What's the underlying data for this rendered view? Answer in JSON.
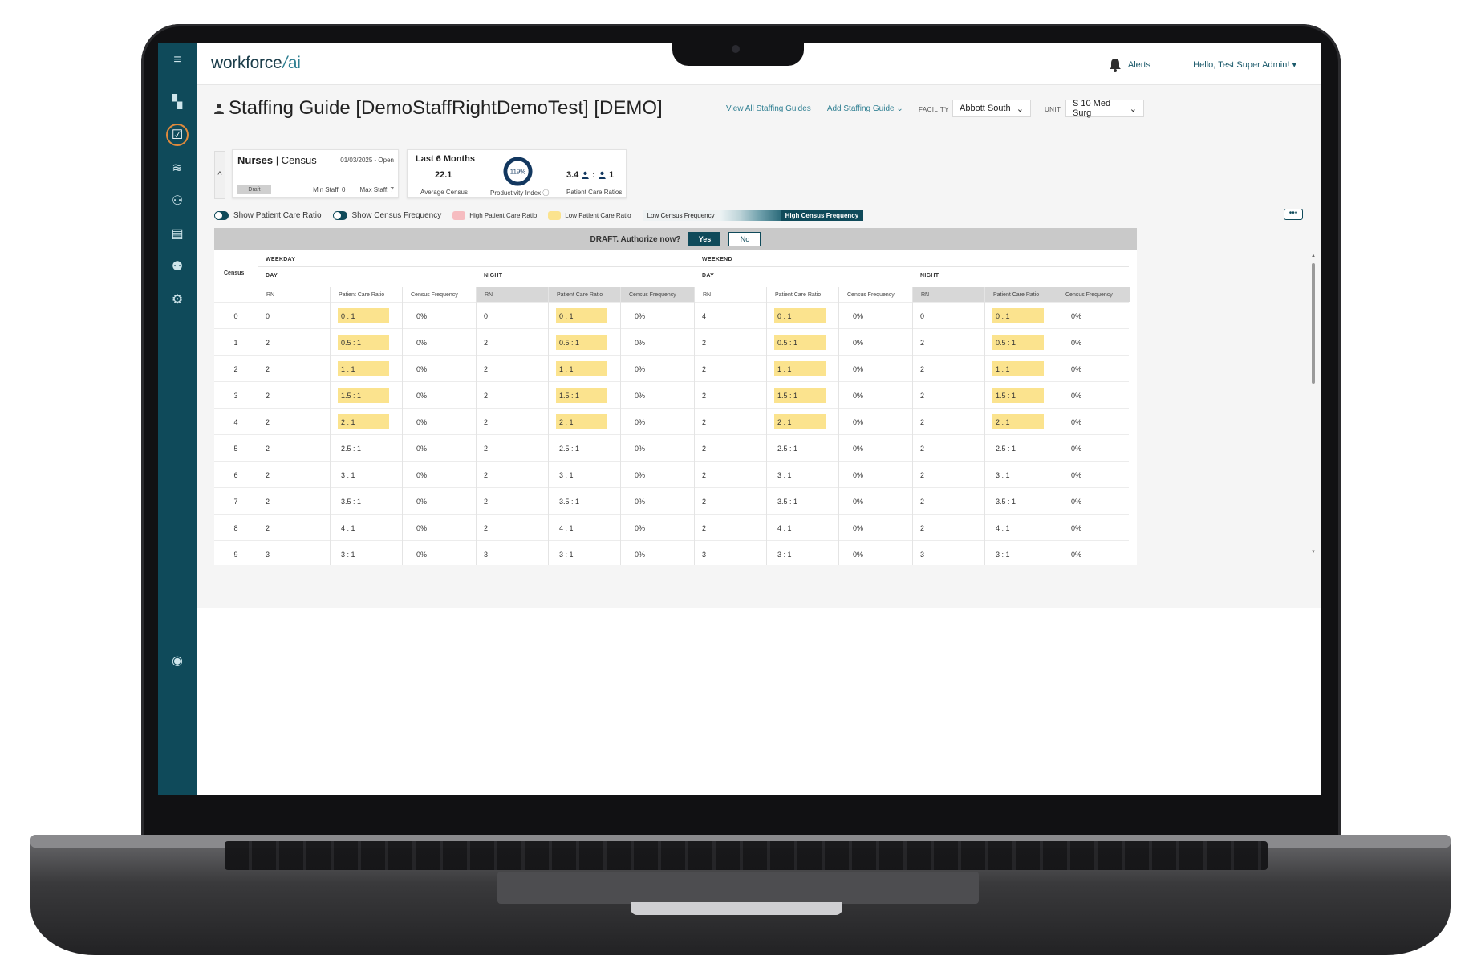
{
  "app": {
    "logo_text": "workforce",
    "logo_slash": "/",
    "logo_ai": "ai",
    "alerts_label": "Alerts",
    "user_menu": "Hello, Test Super Admin! ▾"
  },
  "sidebar": {
    "menu_icon": "hamburger-icon",
    "items": [
      {
        "icon": "dashboard-icon",
        "glyph": "▚"
      },
      {
        "icon": "calendar-check-icon",
        "glyph": "☑",
        "active": true
      },
      {
        "icon": "layers-icon",
        "glyph": "≋"
      },
      {
        "icon": "team-icon",
        "glyph": "⚇"
      },
      {
        "icon": "id-card-icon",
        "glyph": "▤"
      },
      {
        "icon": "users-icon",
        "glyph": "⚉"
      },
      {
        "icon": "settings-icon",
        "glyph": "⚙"
      },
      {
        "icon": "support-icon",
        "glyph": "◉"
      }
    ]
  },
  "header": {
    "title": "Staffing Guide [DemoStaffRightDemoTest] [DEMO]",
    "link_view_all": "View All Staffing Guides",
    "link_add": "Add Staffing Guide ⌄",
    "facility_label": "FACILITY",
    "facility_value": "Abbott South",
    "unit_label": "UNIT",
    "unit_value": "S 10 Med Surg"
  },
  "summary": {
    "card1_title_bold": "Nurses",
    "card1_title_rest": " | Census",
    "card1_date": "01/03/2025 - Open",
    "card1_status": "Draft",
    "card1_min": "Min Staff: 0",
    "card1_max": "Max Staff: 7",
    "card2_title": "Last 6 Months",
    "avg_census": "22.1",
    "avg_census_label": "Average Census",
    "productivity_value": "119%",
    "productivity_fraction": 1.0,
    "productivity_label": "Productivity Index ⓘ",
    "ratio_left": "3.4",
    "ratio_right": "1",
    "ratio_label": "Patient Care Ratios"
  },
  "legend": {
    "show_ratio": "Show Patient Care Ratio",
    "show_freq": "Show Census Frequency",
    "high_ratio": "High Patient Care Ratio",
    "low_ratio": "Low Patient Care Ratio",
    "low_freq": "Low Census Frequency",
    "high_freq": "High Census Frequency",
    "colors": {
      "high": "#f6bcc0",
      "low": "#fbe38e",
      "accent": "#0f4a5a"
    },
    "more": "•••"
  },
  "draft": {
    "text": "DRAFT. Authorize now?",
    "yes": "Yes",
    "no": "No"
  },
  "grid": {
    "census_header": "Census",
    "weekday": "WEEKDAY",
    "weekend": "WEEKEND",
    "day": "DAY",
    "night": "NIGHT",
    "col_rn": "RN",
    "col_ratio": "Patient Care Ratio",
    "col_freq": "Census Frequency",
    "rows": [
      {
        "census": "0",
        "wd_day_rn": "0",
        "wd_day_ratio": "0 : 1",
        "wd_day_freq": "0%",
        "wd_night_rn": "0",
        "wd_night_ratio": "0 : 1",
        "wd_night_freq": "0%",
        "we_day_rn": "4",
        "we_day_ratio": "0 : 1",
        "we_day_freq": "0%",
        "we_night_rn": "0",
        "we_night_ratio": "0 : 1",
        "we_night_freq": "0%",
        "low": true
      },
      {
        "census": "1",
        "wd_day_rn": "2",
        "wd_day_ratio": "0.5 : 1",
        "wd_day_freq": "0%",
        "wd_night_rn": "2",
        "wd_night_ratio": "0.5 : 1",
        "wd_night_freq": "0%",
        "we_day_rn": "2",
        "we_day_ratio": "0.5 : 1",
        "we_day_freq": "0%",
        "we_night_rn": "2",
        "we_night_ratio": "0.5 : 1",
        "we_night_freq": "0%",
        "low": true
      },
      {
        "census": "2",
        "wd_day_rn": "2",
        "wd_day_ratio": "1 : 1",
        "wd_day_freq": "0%",
        "wd_night_rn": "2",
        "wd_night_ratio": "1 : 1",
        "wd_night_freq": "0%",
        "we_day_rn": "2",
        "we_day_ratio": "1 : 1",
        "we_day_freq": "0%",
        "we_night_rn": "2",
        "we_night_ratio": "1 : 1",
        "we_night_freq": "0%",
        "low": true
      },
      {
        "census": "3",
        "wd_day_rn": "2",
        "wd_day_ratio": "1.5 : 1",
        "wd_day_freq": "0%",
        "wd_night_rn": "2",
        "wd_night_ratio": "1.5 : 1",
        "wd_night_freq": "0%",
        "we_day_rn": "2",
        "we_day_ratio": "1.5 : 1",
        "we_day_freq": "0%",
        "we_night_rn": "2",
        "we_night_ratio": "1.5 : 1",
        "we_night_freq": "0%",
        "low": true
      },
      {
        "census": "4",
        "wd_day_rn": "2",
        "wd_day_ratio": "2 : 1",
        "wd_day_freq": "0%",
        "wd_night_rn": "2",
        "wd_night_ratio": "2 : 1",
        "wd_night_freq": "0%",
        "we_day_rn": "2",
        "we_day_ratio": "2 : 1",
        "we_day_freq": "0%",
        "we_night_rn": "2",
        "we_night_ratio": "2 : 1",
        "we_night_freq": "0%",
        "low": true
      },
      {
        "census": "5",
        "wd_day_rn": "2",
        "wd_day_ratio": "2.5 : 1",
        "wd_day_freq": "0%",
        "wd_night_rn": "2",
        "wd_night_ratio": "2.5 : 1",
        "wd_night_freq": "0%",
        "we_day_rn": "2",
        "we_day_ratio": "2.5 : 1",
        "we_day_freq": "0%",
        "we_night_rn": "2",
        "we_night_ratio": "2.5 : 1",
        "we_night_freq": "0%",
        "low": false
      },
      {
        "census": "6",
        "wd_day_rn": "2",
        "wd_day_ratio": "3 : 1",
        "wd_day_freq": "0%",
        "wd_night_rn": "2",
        "wd_night_ratio": "3 : 1",
        "wd_night_freq": "0%",
        "we_day_rn": "2",
        "we_day_ratio": "3 : 1",
        "we_day_freq": "0%",
        "we_night_rn": "2",
        "we_night_ratio": "3 : 1",
        "we_night_freq": "0%",
        "low": false
      },
      {
        "census": "7",
        "wd_day_rn": "2",
        "wd_day_ratio": "3.5 : 1",
        "wd_day_freq": "0%",
        "wd_night_rn": "2",
        "wd_night_ratio": "3.5 : 1",
        "wd_night_freq": "0%",
        "we_day_rn": "2",
        "we_day_ratio": "3.5 : 1",
        "we_day_freq": "0%",
        "we_night_rn": "2",
        "we_night_ratio": "3.5 : 1",
        "we_night_freq": "0%",
        "low": false
      },
      {
        "census": "8",
        "wd_day_rn": "2",
        "wd_day_ratio": "4 : 1",
        "wd_day_freq": "0%",
        "wd_night_rn": "2",
        "wd_night_ratio": "4 : 1",
        "wd_night_freq": "0%",
        "we_day_rn": "2",
        "we_day_ratio": "4 : 1",
        "we_day_freq": "0%",
        "we_night_rn": "2",
        "we_night_ratio": "4 : 1",
        "we_night_freq": "0%",
        "low": false
      },
      {
        "census": "9",
        "wd_day_rn": "3",
        "wd_day_ratio": "3 : 1",
        "wd_day_freq": "0%",
        "wd_night_rn": "3",
        "wd_night_ratio": "3 : 1",
        "wd_night_freq": "0%",
        "we_day_rn": "3",
        "we_day_ratio": "3 : 1",
        "we_day_freq": "0%",
        "we_night_rn": "3",
        "we_night_ratio": "3 : 1",
        "we_night_freq": "0%",
        "low": false
      }
    ]
  }
}
